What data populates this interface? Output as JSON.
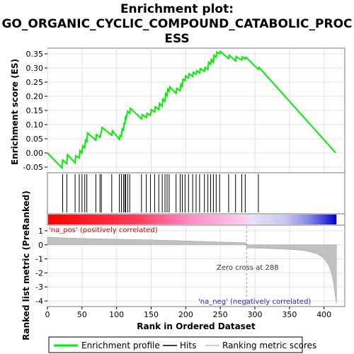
{
  "chart_data": {
    "type": "line",
    "title_lines": [
      "Enrichment plot:",
      "GO_ORGANIC_CYCLIC_COMPOUND_CATABOLIC_PROC",
      "ESS"
    ],
    "ylabel_top": "Enrichment score (ES)",
    "ylabel_bottom": "Ranked list metric (PreRanked)",
    "xlabel": "Rank in Ordered Dataset",
    "x_range": [
      0,
      430
    ],
    "es_ylim": [
      -0.07,
      0.37
    ],
    "es_yticks": [
      "0.35",
      "0.30",
      "0.25",
      "0.20",
      "0.15",
      "0.10",
      "0.05",
      "0.00",
      "-0.05"
    ],
    "metric_ylim": [
      -4.4,
      1.4
    ],
    "metric_yticks": [
      "1",
      "0",
      "-1",
      "-2",
      "-3",
      "-4"
    ],
    "xticks": [
      "0",
      "50",
      "100",
      "150",
      "200",
      "250",
      "300",
      "350",
      "400"
    ],
    "es_curve": {
      "name": "Enrichment profile",
      "color": "#00ee00",
      "points": [
        [
          0,
          0.0
        ],
        [
          21,
          -0.053
        ],
        [
          22,
          -0.025
        ],
        [
          28,
          -0.038
        ],
        [
          29,
          -0.006
        ],
        [
          40,
          -0.035
        ],
        [
          41,
          -0.01
        ],
        [
          46,
          -0.018
        ],
        [
          47,
          0.008
        ],
        [
          50,
          0.0
        ],
        [
          51,
          0.025
        ],
        [
          54,
          0.018
        ],
        [
          55,
          0.045
        ],
        [
          57,
          0.04
        ],
        [
          58,
          0.07
        ],
        [
          70,
          0.045
        ],
        [
          71,
          0.065
        ],
        [
          76,
          0.055
        ],
        [
          78,
          0.075
        ],
        [
          79,
          0.09
        ],
        [
          93,
          0.062
        ],
        [
          94,
          0.078
        ],
        [
          104,
          0.048
        ],
        [
          105,
          0.062
        ],
        [
          107,
          0.058
        ],
        [
          108,
          0.085
        ],
        [
          110,
          0.08
        ],
        [
          111,
          0.107
        ],
        [
          112,
          0.1
        ],
        [
          113,
          0.13
        ],
        [
          114,
          0.123
        ],
        [
          116,
          0.147
        ],
        [
          119,
          0.14
        ],
        [
          120,
          0.158
        ],
        [
          136,
          0.12
        ],
        [
          137,
          0.135
        ],
        [
          143,
          0.125
        ],
        [
          144,
          0.14
        ],
        [
          149,
          0.133
        ],
        [
          150,
          0.153
        ],
        [
          155,
          0.145
        ],
        [
          156,
          0.163
        ],
        [
          161,
          0.153
        ],
        [
          162,
          0.175
        ],
        [
          166,
          0.165
        ],
        [
          167,
          0.19
        ],
        [
          170,
          0.182
        ],
        [
          171,
          0.21
        ],
        [
          173,
          0.202
        ],
        [
          174,
          0.225
        ],
        [
          176,
          0.218
        ],
        [
          177,
          0.233
        ],
        [
          186,
          0.21
        ],
        [
          187,
          0.228
        ],
        [
          192,
          0.22
        ],
        [
          193,
          0.243
        ],
        [
          195,
          0.235
        ],
        [
          196,
          0.26
        ],
        [
          199,
          0.255
        ],
        [
          200,
          0.272
        ],
        [
          204,
          0.265
        ],
        [
          205,
          0.28
        ],
        [
          210,
          0.27
        ],
        [
          211,
          0.285
        ],
        [
          215,
          0.278
        ],
        [
          216,
          0.29
        ],
        [
          220,
          0.282
        ],
        [
          221,
          0.298
        ],
        [
          227,
          0.288
        ],
        [
          228,
          0.302
        ],
        [
          232,
          0.295
        ],
        [
          233,
          0.32
        ],
        [
          236,
          0.313
        ],
        [
          237,
          0.33
        ],
        [
          240,
          0.32
        ],
        [
          241,
          0.345
        ],
        [
          244,
          0.338
        ],
        [
          245,
          0.356
        ],
        [
          249,
          0.35
        ],
        [
          250,
          0.358
        ],
        [
          262,
          0.333
        ],
        [
          263,
          0.345
        ],
        [
          272,
          0.325
        ],
        [
          273,
          0.34
        ],
        [
          281,
          0.328
        ],
        [
          282,
          0.34
        ],
        [
          286,
          0.332
        ],
        [
          287,
          0.338
        ],
        [
          305,
          0.295
        ],
        [
          306,
          0.302
        ],
        [
          417,
          0.0
        ]
      ]
    },
    "hits_legend": "Hits",
    "hit_ranks": [
      22,
      28,
      40,
      46,
      50,
      54,
      57,
      70,
      76,
      78,
      93,
      104,
      107,
      110,
      112,
      113,
      116,
      119,
      136,
      143,
      149,
      155,
      161,
      166,
      170,
      173,
      176,
      186,
      192,
      195,
      199,
      204,
      210,
      215,
      220,
      227,
      232,
      236,
      240,
      244,
      249,
      262,
      272,
      281,
      286,
      305
    ],
    "metric_legend": "Ranking metric scores",
    "metric_profile": [
      [
        0,
        0.55
      ],
      [
        20,
        0.5
      ],
      [
        50,
        0.45
      ],
      [
        100,
        0.4
      ],
      [
        150,
        0.35
      ],
      [
        200,
        0.28
      ],
      [
        250,
        0.2
      ],
      [
        287,
        0.15
      ],
      [
        288,
        -0.22
      ],
      [
        320,
        -0.27
      ],
      [
        350,
        -0.33
      ],
      [
        370,
        -0.4
      ],
      [
        380,
        -0.5
      ],
      [
        390,
        -0.65
      ],
      [
        398,
        -0.9
      ],
      [
        403,
        -1.2
      ],
      [
        407,
        -1.5
      ],
      [
        410,
        -1.9
      ],
      [
        412,
        -2.3
      ],
      [
        414,
        -2.8
      ],
      [
        416,
        -3.6
      ],
      [
        418,
        -4.2
      ]
    ],
    "zero_cross_label": "Zero cross at 288",
    "zero_cross_rank": 288,
    "pos_label": "'na_pos' (positively correlated)",
    "neg_label": "'na_neg' (negatively correlated)",
    "grid": true
  }
}
